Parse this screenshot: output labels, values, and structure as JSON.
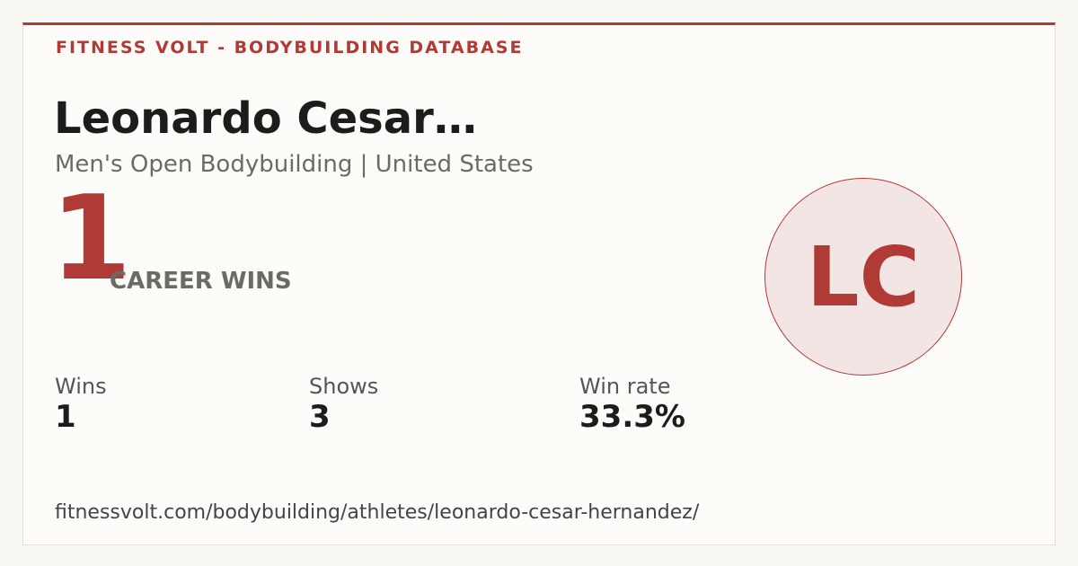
{
  "header": {
    "brand": "FITNESS VOLT - BODYBUILDING DATABASE"
  },
  "athlete": {
    "name": "Leonardo Cesar…",
    "subtitle": "Men's Open Bodybuilding | United States",
    "initials": "LC"
  },
  "hero": {
    "value": "1",
    "label": "CAREER WINS"
  },
  "stats": [
    {
      "label": "Wins",
      "value": "1"
    },
    {
      "label": "Shows",
      "value": "3"
    },
    {
      "label": "Win rate",
      "value": "33.3%"
    }
  ],
  "footer": {
    "url": "fitnessvolt.com/bodybuilding/athletes/leonardo-cesar-hernandez/"
  }
}
